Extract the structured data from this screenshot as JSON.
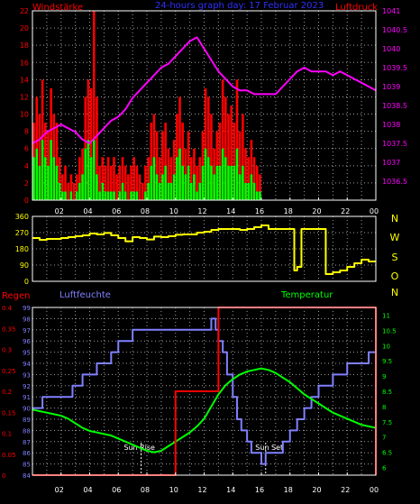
{
  "header": {
    "left_label": "Windstärke",
    "title": "24-hours graph day: 17 Februar 2023",
    "right_label": "Luftdruck"
  },
  "colors": {
    "background": "#000000",
    "frame": "#ffffff",
    "grid": "#c8c8c8",
    "wind_gust": "#ff0000",
    "wind_avg": "#00ff00",
    "pressure": "#ff00ff",
    "direction": "#ffff00",
    "rain": "#ff0000",
    "humidity": "#8080ff",
    "temperature": "#00ff00",
    "title": "#3030ff",
    "daylight_marker": "#ffffff",
    "compass": "#ffff00",
    "axis_left_top": "#ff0000",
    "axis_right_top": "#ff00ff"
  },
  "x_tick_labels": [
    "02",
    "04",
    "06",
    "08",
    "10",
    "12",
    "14",
    "16",
    "18",
    "20",
    "22",
    "00"
  ],
  "compass_letters": [
    "N",
    "W",
    "S",
    "O",
    "N"
  ],
  "bottom_headers": {
    "rain": "Regen",
    "humidity": "Luftfeuchte",
    "temperature": "Temperatur"
  },
  "daylight": {
    "sunrise_label": "Sun Rise",
    "sunset_label": "Sun Set"
  },
  "chart_data": [
    {
      "type": "bar",
      "panel": "wind_pressure",
      "x_unit": "hour",
      "x_range": [
        0,
        24
      ],
      "ylabel": "Windstärke",
      "ylim": [
        0,
        22
      ],
      "y_ticks": [
        0,
        2,
        4,
        6,
        8,
        10,
        12,
        14,
        16,
        18,
        20,
        22
      ],
      "y2label": "Luftdruck",
      "y2lim": [
        1036,
        1041
      ],
      "y2_ticks": [
        1036.5,
        1037,
        1037.5,
        1038,
        1038.5,
        1039,
        1039.5,
        1040,
        1040.5,
        1041
      ],
      "grid": true,
      "series": [
        {
          "type": "bar",
          "axis": "left",
          "x": [
            0.1,
            0.3,
            0.5,
            0.7,
            0.9,
            1.1,
            1.3,
            1.5,
            1.7,
            1.9,
            2.1,
            2.3,
            2.5,
            2.7,
            2.9,
            3.1,
            3.3,
            3.5,
            3.7,
            3.9,
            4.1,
            4.3,
            4.5,
            4.7,
            4.9,
            5.1,
            5.3,
            5.5,
            5.7,
            5.9,
            6.1,
            6.3,
            6.5,
            6.7,
            6.9,
            7.1,
            7.3,
            7.5,
            7.7,
            7.9,
            8.1,
            8.3,
            8.5,
            8.7,
            8.9,
            9.1,
            9.3,
            9.5,
            9.7,
            9.9,
            10.1,
            10.3,
            10.5,
            10.7,
            10.9,
            11.1,
            11.3,
            11.5,
            11.7,
            11.9,
            12.1,
            12.3,
            12.5,
            12.7,
            12.9,
            13.1,
            13.3,
            13.5,
            13.7,
            13.9,
            14.1,
            14.3,
            14.5,
            14.7,
            14.9,
            15.1,
            15.3,
            15.5,
            15.7,
            15.9
          ],
          "values": [
            9,
            12,
            10,
            14,
            9,
            8,
            13,
            10,
            9,
            5,
            3,
            4,
            2,
            3,
            2,
            3,
            5,
            6,
            12,
            14,
            13,
            22,
            12,
            4,
            5,
            4,
            5,
            4,
            5,
            3,
            4,
            5,
            4,
            3,
            4,
            5,
            4,
            3,
            2,
            4,
            5,
            9,
            10,
            8,
            5,
            8,
            9,
            6,
            5,
            7,
            10,
            12,
            9,
            6,
            8,
            5,
            6,
            4,
            5,
            8,
            13,
            12,
            10,
            6,
            8,
            9,
            14,
            12,
            10,
            11,
            9,
            14,
            8,
            10,
            6,
            5,
            7,
            5,
            4,
            3
          ]
        },
        {
          "type": "bar",
          "axis": "left",
          "x": [
            0.1,
            0.3,
            0.5,
            0.7,
            0.9,
            1.1,
            1.3,
            1.5,
            1.7,
            1.9,
            2.1,
            2.3,
            2.5,
            2.7,
            2.9,
            3.1,
            3.3,
            3.5,
            3.7,
            3.9,
            4.1,
            4.3,
            4.5,
            4.7,
            4.9,
            5.1,
            5.3,
            5.5,
            5.7,
            5.9,
            6.1,
            6.3,
            6.5,
            6.7,
            6.9,
            7.1,
            7.3,
            7.5,
            7.7,
            7.9,
            8.1,
            8.3,
            8.5,
            8.7,
            8.9,
            9.1,
            9.3,
            9.5,
            9.7,
            9.9,
            10.1,
            10.3,
            10.5,
            10.7,
            10.9,
            11.1,
            11.3,
            11.5,
            11.7,
            11.9,
            12.1,
            12.3,
            12.5,
            12.7,
            12.9,
            13.1,
            13.3,
            13.5,
            13.7,
            13.9,
            14.1,
            14.3,
            14.5,
            14.7,
            14.9,
            15.1,
            15.3,
            15.5,
            15.7,
            15.9
          ],
          "values": [
            5,
            6,
            4,
            7,
            5,
            4,
            7,
            5,
            4,
            2,
            1,
            1,
            0,
            1,
            0,
            1,
            2,
            3,
            6,
            7,
            5,
            7,
            3,
            1,
            2,
            1,
            1,
            1,
            1,
            0,
            1,
            2,
            1,
            0,
            1,
            1,
            1,
            0,
            0,
            1,
            2,
            4,
            5,
            3,
            2,
            3,
            4,
            2,
            2,
            3,
            5,
            6,
            4,
            3,
            4,
            2,
            3,
            1,
            2,
            4,
            6,
            5,
            4,
            3,
            4,
            4,
            6,
            5,
            4,
            4,
            4,
            6,
            3,
            4,
            2,
            2,
            3,
            2,
            1,
            1
          ]
        },
        {
          "type": "line",
          "axis": "right",
          "x": [
            0,
            0.5,
            1,
            1.5,
            2,
            2.5,
            3,
            3.5,
            4,
            4.5,
            5,
            5.5,
            6,
            6.5,
            7,
            7.5,
            8,
            8.5,
            9,
            9.5,
            10,
            10.5,
            11,
            11.5,
            12,
            12.5,
            13,
            13.5,
            14,
            14.5,
            15,
            15.5,
            16,
            16.5,
            17,
            17.5,
            18,
            18.5,
            19,
            19.5,
            20,
            20.5,
            21,
            21.5,
            22,
            22.5,
            23,
            23.5,
            24
          ],
          "values": [
            1037.5,
            1037.6,
            1037.8,
            1037.9,
            1038.0,
            1037.9,
            1037.8,
            1037.6,
            1037.5,
            1037.7,
            1037.9,
            1038.1,
            1038.2,
            1038.4,
            1038.7,
            1038.9,
            1039.1,
            1039.3,
            1039.5,
            1039.6,
            1039.8,
            1040.0,
            1040.2,
            1040.3,
            1040.0,
            1039.7,
            1039.4,
            1039.2,
            1039.0,
            1038.9,
            1038.9,
            1038.8,
            1038.8,
            1038.8,
            1038.8,
            1039.0,
            1039.2,
            1039.4,
            1039.5,
            1039.4,
            1039.4,
            1039.4,
            1039.3,
            1039.4,
            1039.3,
            1039.2,
            1039.1,
            1039.0,
            1038.9
          ]
        }
      ]
    },
    {
      "type": "line",
      "panel": "wind_direction",
      "x_unit": "hour",
      "x_range": [
        0,
        24
      ],
      "ylim": [
        0,
        360
      ],
      "y_ticks": [
        0,
        90,
        180,
        270,
        360
      ],
      "grid": true,
      "series": [
        {
          "type": "line",
          "step": true,
          "x": [
            0,
            0.5,
            1,
            1.5,
            2,
            2.5,
            3,
            3.5,
            4,
            4.5,
            5,
            5.5,
            6,
            6.5,
            7,
            7.5,
            8,
            8.5,
            9,
            9.5,
            10,
            10.5,
            11,
            11.5,
            12,
            12.5,
            13,
            13.5,
            14,
            14.5,
            15,
            15.5,
            16,
            16.5,
            17,
            17.5,
            18,
            18.3,
            18.5,
            18.8,
            19,
            19.5,
            20,
            20.5,
            21,
            21.5,
            22,
            22.5,
            23,
            23.5,
            24
          ],
          "values": [
            240,
            230,
            235,
            235,
            240,
            245,
            250,
            255,
            265,
            260,
            268,
            255,
            240,
            222,
            245,
            240,
            232,
            248,
            245,
            250,
            258,
            260,
            260,
            270,
            275,
            285,
            290,
            290,
            290,
            285,
            290,
            300,
            310,
            290,
            290,
            290,
            290,
            60,
            80,
            290,
            290,
            290,
            290,
            40,
            50,
            60,
            80,
            100,
            120,
            110,
            110
          ]
        }
      ]
    },
    {
      "type": "line",
      "panel": "rain_humidity_temperature",
      "x_unit": "hour",
      "x_range": [
        0,
        24
      ],
      "y_left_outer_label": "Regen",
      "y_left_outer_lim": [
        0,
        0.4
      ],
      "y_left_outer_ticks": [
        0,
        0.05,
        0.1,
        0.15,
        0.2,
        0.25,
        0.3,
        0.35,
        0.4
      ],
      "y_left_inner_label": "Luftfeuchte",
      "y_left_inner_lim": [
        84,
        99
      ],
      "y_left_inner_ticks": [
        84,
        85,
        86,
        87,
        88,
        89,
        90,
        91,
        92,
        93,
        94,
        95,
        96,
        97,
        98,
        99
      ],
      "y_right_label": "Temperatur",
      "y_right_lim": [
        5.75,
        11.25
      ],
      "y_right_ticks": [
        6,
        6.5,
        7,
        7.5,
        8,
        8.5,
        9,
        9.5,
        10,
        10.5,
        11
      ],
      "grid": true,
      "series": [
        {
          "type": "line",
          "step": true,
          "axis": "left_outer",
          "x": [
            0,
            9.9,
            10,
            12.9,
            13,
            23.9,
            24
          ],
          "values": [
            0,
            0,
            0.2,
            0.2,
            0.4,
            0.4,
            0
          ]
        },
        {
          "type": "line",
          "step": true,
          "axis": "left_inner",
          "x": [
            0,
            0.7,
            1,
            2,
            2.8,
            3.5,
            4,
            4.5,
            5,
            5.5,
            6,
            6.5,
            7,
            7.5,
            8,
            9,
            10,
            11,
            12,
            12.5,
            12.8,
            13,
            13.3,
            13.6,
            14,
            14.3,
            14.6,
            15,
            15.3,
            15.6,
            16,
            16.3,
            16.6,
            17,
            17.5,
            18,
            18.5,
            19,
            19.5,
            20,
            20.5,
            21,
            21.5,
            22,
            22.5,
            23,
            23.5,
            24
          ],
          "values": [
            90,
            91,
            91,
            91,
            92,
            93,
            93,
            94,
            94,
            95,
            96,
            96,
            97,
            97,
            97,
            97,
            97,
            97,
            97,
            98,
            97,
            96,
            95,
            93,
            91,
            89,
            88,
            87,
            86,
            86,
            85,
            86,
            86,
            86,
            87,
            88,
            89,
            90,
            91,
            92,
            92,
            93,
            93,
            94,
            94,
            94,
            95,
            95
          ]
        },
        {
          "type": "line",
          "axis": "right",
          "x": [
            0,
            0.5,
            1,
            1.5,
            2,
            2.5,
            3,
            3.5,
            4,
            4.5,
            5,
            5.5,
            6,
            6.5,
            7,
            7.5,
            8,
            8.5,
            9,
            9.5,
            10,
            10.5,
            11,
            11.5,
            12,
            12.5,
            13,
            13.5,
            14,
            14.5,
            15,
            15.5,
            16,
            16.5,
            17,
            17.5,
            18,
            18.5,
            19,
            19.5,
            20,
            20.5,
            21,
            21.5,
            22,
            22.5,
            23,
            23.5,
            24
          ],
          "values": [
            7.9,
            7.85,
            7.8,
            7.75,
            7.7,
            7.6,
            7.45,
            7.3,
            7.2,
            7.15,
            7.1,
            7.05,
            6.95,
            6.85,
            6.75,
            6.65,
            6.55,
            6.5,
            6.55,
            6.7,
            6.85,
            7.0,
            7.15,
            7.35,
            7.6,
            8.0,
            8.4,
            8.7,
            8.9,
            9.05,
            9.15,
            9.2,
            9.25,
            9.2,
            9.1,
            8.95,
            8.8,
            8.6,
            8.4,
            8.25,
            8.1,
            7.95,
            7.8,
            7.7,
            7.6,
            7.5,
            7.4,
            7.35,
            7.3
          ]
        }
      ]
    }
  ]
}
